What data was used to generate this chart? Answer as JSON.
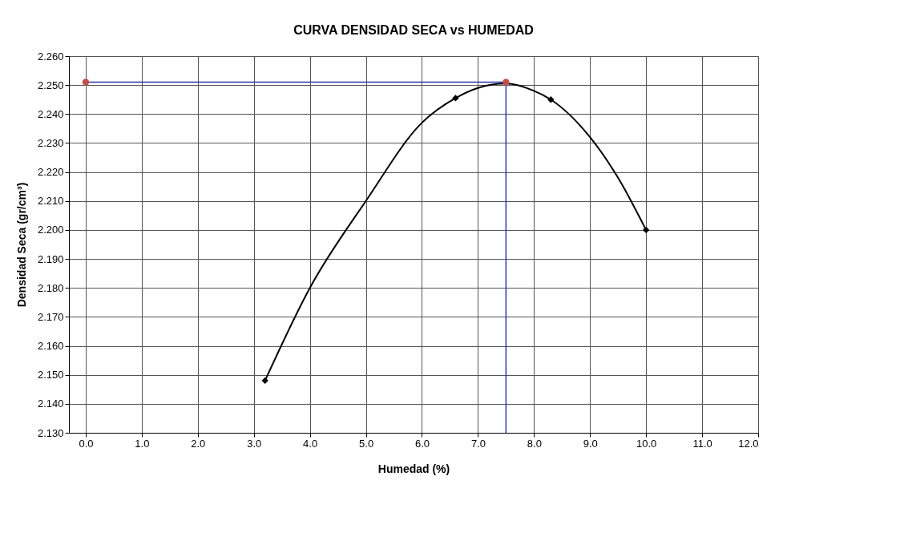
{
  "chart_data": {
    "type": "scatter",
    "title": "CURVA DENSIDAD SECA vs HUMEDAD",
    "xlabel": "Humedad (%)",
    "ylabel": "Densidad Seca (gr/cm³)",
    "xlim": [
      -0.3,
      12.0
    ],
    "ylim": [
      2.13,
      2.26
    ],
    "xticks": [
      {
        "value": 0,
        "label": "0.0"
      },
      {
        "value": 1,
        "label": "1.0"
      },
      {
        "value": 2,
        "label": "2.0"
      },
      {
        "value": 3,
        "label": "3.0"
      },
      {
        "value": 4,
        "label": "4.0"
      },
      {
        "value": 5,
        "label": "5.0"
      },
      {
        "value": 6,
        "label": "6.0"
      },
      {
        "value": 7,
        "label": "7.0"
      },
      {
        "value": 8,
        "label": "8.0"
      },
      {
        "value": 9,
        "label": "9.0"
      },
      {
        "value": 10,
        "label": "10.0"
      },
      {
        "value": 11,
        "label": "11.0"
      },
      {
        "value": 12,
        "label": "12.0"
      }
    ],
    "yticks": [
      {
        "value": 2.13,
        "label": "2.130"
      },
      {
        "value": 2.14,
        "label": "2.140"
      },
      {
        "value": 2.15,
        "label": "2.150"
      },
      {
        "value": 2.16,
        "label": "2.160"
      },
      {
        "value": 2.17,
        "label": "2.170"
      },
      {
        "value": 2.18,
        "label": "2.180"
      },
      {
        "value": 2.19,
        "label": "2.190"
      },
      {
        "value": 2.2,
        "label": "2.200"
      },
      {
        "value": 2.21,
        "label": "2.210"
      },
      {
        "value": 2.22,
        "label": "2.220"
      },
      {
        "value": 2.23,
        "label": "2.230"
      },
      {
        "value": 2.24,
        "label": "2.240"
      },
      {
        "value": 2.25,
        "label": "2.250"
      },
      {
        "value": 2.26,
        "label": "2.260"
      }
    ],
    "grid": true,
    "line_style": "solid",
    "series": [
      {
        "type": "line",
        "color": "#3333aa",
        "x": [
          0,
          7.5
        ],
        "values": [
          2.251,
          2.251
        ],
        "marker": "none"
      },
      {
        "type": "line",
        "color": "#3333aa",
        "x": [
          7.5,
          7.5
        ],
        "values": [
          2.13,
          2.251
        ],
        "marker": "none"
      },
      {
        "type": "line",
        "color": "#000000",
        "x": [
          3.2,
          4.0,
          5.0,
          6.0,
          6.6,
          7.0,
          7.5,
          8.0,
          8.3,
          9.0,
          9.5,
          10.0
        ],
        "values": [
          2.148,
          2.18,
          2.21,
          2.237,
          2.2455,
          2.249,
          2.2505,
          2.248,
          2.245,
          2.232,
          2.218,
          2.2
        ],
        "marker": "none"
      },
      {
        "color": "#000000",
        "x": [
          3.2,
          6.6,
          8.3,
          10.0
        ],
        "values": [
          2.148,
          2.2455,
          2.245,
          2.2
        ],
        "marker": "diamond"
      },
      {
        "color": "#c0504d",
        "x": [
          0,
          7.5
        ],
        "values": [
          2.251,
          2.251
        ],
        "marker": "circle"
      }
    ]
  }
}
